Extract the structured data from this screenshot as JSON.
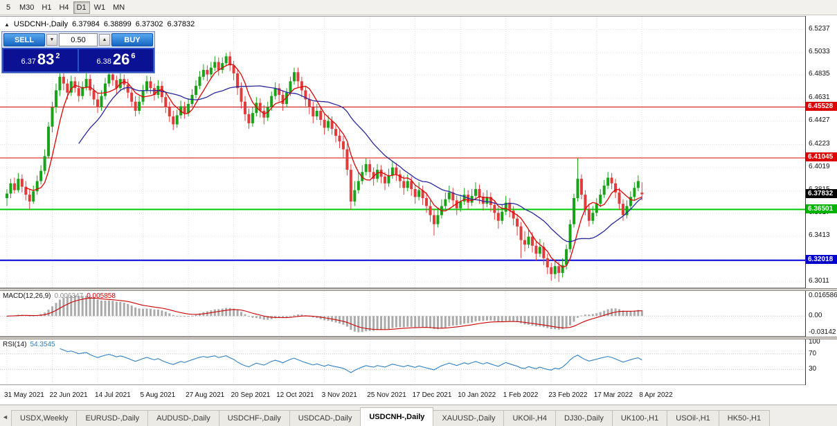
{
  "toolbar": {
    "timeframes": [
      {
        "label": "5",
        "active": false
      },
      {
        "label": "M30",
        "active": false
      },
      {
        "label": "H1",
        "active": false
      },
      {
        "label": "H4",
        "active": false
      },
      {
        "label": "D1",
        "active": true
      },
      {
        "label": "W1",
        "active": false
      },
      {
        "label": "MN",
        "active": false
      }
    ]
  },
  "icons": {
    "collapse": "▲",
    "lot_decrease": "▼",
    "lot_increase": "▲",
    "tab_scroll_left": "◄"
  },
  "chart": {
    "title": "USDCNH-,Daily",
    "ohlc": {
      "open": "6.37984",
      "high": "6.38899",
      "low": "6.37302",
      "close": "6.37832"
    }
  },
  "trade_panel": {
    "sell_label": "SELL",
    "buy_label": "BUY",
    "lot_size": "0.50",
    "sell_price": {
      "prefix": "6.37",
      "big": "83",
      "sup": "2"
    },
    "buy_price": {
      "prefix": "6.38",
      "big": "26",
      "sup": "6"
    }
  },
  "price_axis": {
    "labels": [
      "6.5237",
      "6.5033",
      "6.4835",
      "6.4631",
      "6.4427",
      "6.4223",
      "6.4019",
      "6.3815",
      "6.3617",
      "6.3413",
      "6.3209",
      "6.3011"
    ],
    "tags": [
      {
        "text": "6.45528",
        "color": "#dd0000"
      },
      {
        "text": "6.41045",
        "color": "#dd0000"
      },
      {
        "text": "6.37832",
        "color": "#000000"
      },
      {
        "text": "6.36501",
        "color": "#00b300"
      },
      {
        "text": "6.32018",
        "color": "#0000cc"
      }
    ]
  },
  "indicators": {
    "macd": {
      "name": "MACD(12,26,9)",
      "value_main": "0.006347",
      "value_signal": "0.005858",
      "axis_labels": [
        "0.016586",
        "0.00",
        "-0.03142"
      ],
      "fast": 12,
      "slow": 26,
      "signal": 9,
      "hist_color": "#aaaaaa",
      "signal_color": "#cc0000"
    },
    "rsi": {
      "name": "RSI(14)",
      "value": "54.3545",
      "axis_labels": [
        "100",
        "70",
        "30"
      ],
      "period": 14,
      "line_color": "#2e7fc1",
      "levels": [
        70,
        30
      ]
    }
  },
  "x_axis": {
    "dates": [
      "31 May 2021",
      "22 Jun 2021",
      "14 Jul 2021",
      "5 Aug 2021",
      "27 Aug 2021",
      "20 Sep 2021",
      "12 Oct 2021",
      "3 Nov 2021",
      "25 Nov 2021",
      "17 Dec 2021",
      "10 Jan 2022",
      "1 Feb 2022",
      "23 Feb 2022",
      "17 Mar 2022",
      "8 Apr 2022"
    ]
  },
  "tabs": {
    "items": [
      {
        "label": "USDX,Weekly",
        "active": false
      },
      {
        "label": "EURUSD-,Daily",
        "active": false
      },
      {
        "label": "AUDUSD-,Daily",
        "active": false
      },
      {
        "label": "USDCHF-,Daily",
        "active": false
      },
      {
        "label": "USDCAD-,Daily",
        "active": false
      },
      {
        "label": "USDCNH-,Daily",
        "active": true
      },
      {
        "label": "XAUUSD-,Daily",
        "active": false
      },
      {
        "label": "UKOil-,H4",
        "active": false
      },
      {
        "label": "DJ30-,Daily",
        "active": false
      },
      {
        "label": "UK100-,H1",
        "active": false
      },
      {
        "label": "USOil-,H1",
        "active": false
      },
      {
        "label": "HK50-,H1",
        "active": false
      }
    ]
  },
  "chart_data": {
    "type": "candlestick",
    "symbol": "USDCNH-",
    "timeframe": "Daily",
    "title": "USDCNH-,Daily",
    "ylim": [
      6.295,
      6.535
    ],
    "up_color": "#18a318",
    "down_color": "#e03c3c",
    "ma_fast_period": 6,
    "ma_fast_color": "#dd0000",
    "ma_slow_period": 20,
    "ma_slow_color": "#26269e",
    "last_price": 6.37832,
    "hlines": [
      {
        "price": 6.45528,
        "color": "#dd0000",
        "width": 1
      },
      {
        "price": 6.41045,
        "color": "#dd0000",
        "width": 1
      },
      {
        "price": 6.36501,
        "color": "#00cc00",
        "width": 2
      },
      {
        "price": 6.32018,
        "color": "#0000dd",
        "width": 2
      }
    ],
    "candles": [
      [
        6.375,
        6.383,
        6.368,
        6.379
      ],
      [
        6.379,
        6.392,
        6.375,
        6.388
      ],
      [
        6.388,
        6.393,
        6.379,
        6.382
      ],
      [
        6.382,
        6.397,
        6.38,
        6.392
      ],
      [
        6.392,
        6.396,
        6.38,
        6.385
      ],
      [
        6.385,
        6.39,
        6.373,
        6.378
      ],
      [
        6.378,
        6.383,
        6.365,
        6.372
      ],
      [
        6.372,
        6.386,
        6.37,
        6.381
      ],
      [
        6.381,
        6.395,
        6.378,
        6.39
      ],
      [
        6.39,
        6.404,
        6.387,
        6.399
      ],
      [
        6.399,
        6.418,
        6.396,
        6.412
      ],
      [
        6.412,
        6.442,
        6.41,
        6.438
      ],
      [
        6.438,
        6.46,
        6.433,
        6.455
      ],
      [
        6.455,
        6.476,
        6.45,
        6.47
      ],
      [
        6.47,
        6.487,
        6.465,
        6.482
      ],
      [
        6.482,
        6.486,
        6.47,
        6.476
      ],
      [
        6.476,
        6.48,
        6.462,
        6.468
      ],
      [
        6.468,
        6.483,
        6.465,
        6.478
      ],
      [
        6.478,
        6.482,
        6.468,
        6.472
      ],
      [
        6.472,
        6.478,
        6.46,
        6.465
      ],
      [
        6.465,
        6.478,
        6.462,
        6.473
      ],
      [
        6.473,
        6.485,
        6.47,
        6.48
      ],
      [
        6.48,
        6.484,
        6.465,
        6.47
      ],
      [
        6.47,
        6.475,
        6.457,
        6.462
      ],
      [
        6.462,
        6.468,
        6.45,
        6.455
      ],
      [
        6.455,
        6.47,
        6.452,
        6.465
      ],
      [
        6.465,
        6.481,
        6.462,
        6.476
      ],
      [
        6.476,
        6.489,
        6.473,
        6.484
      ],
      [
        6.484,
        6.488,
        6.474,
        6.479
      ],
      [
        6.479,
        6.483,
        6.467,
        6.472
      ],
      [
        6.472,
        6.485,
        6.469,
        6.48
      ],
      [
        6.48,
        6.484,
        6.47,
        6.475
      ],
      [
        6.475,
        6.48,
        6.463,
        6.468
      ],
      [
        6.468,
        6.473,
        6.455,
        6.46
      ],
      [
        6.46,
        6.465,
        6.447,
        6.452
      ],
      [
        6.452,
        6.465,
        6.449,
        6.46
      ],
      [
        6.46,
        6.475,
        6.457,
        6.47
      ],
      [
        6.47,
        6.483,
        6.467,
        6.478
      ],
      [
        6.478,
        6.482,
        6.467,
        6.472
      ],
      [
        6.472,
        6.476,
        6.461,
        6.466
      ],
      [
        6.466,
        6.479,
        6.463,
        6.474
      ],
      [
        6.474,
        6.478,
        6.459,
        6.464
      ],
      [
        6.464,
        6.469,
        6.45,
        6.455
      ],
      [
        6.455,
        6.46,
        6.442,
        6.447
      ],
      [
        6.447,
        6.452,
        6.435,
        6.44
      ],
      [
        6.44,
        6.453,
        6.437,
        6.448
      ],
      [
        6.448,
        6.461,
        6.445,
        6.456
      ],
      [
        6.456,
        6.46,
        6.445,
        6.45
      ],
      [
        6.45,
        6.463,
        6.447,
        6.458
      ],
      [
        6.458,
        6.471,
        6.455,
        6.466
      ],
      [
        6.466,
        6.479,
        6.463,
        6.474
      ],
      [
        6.474,
        6.487,
        6.471,
        6.482
      ],
      [
        6.482,
        6.493,
        6.479,
        6.488
      ],
      [
        6.488,
        6.492,
        6.478,
        6.484
      ],
      [
        6.484,
        6.495,
        6.481,
        6.49
      ],
      [
        6.49,
        6.5,
        6.487,
        6.495
      ],
      [
        6.495,
        6.499,
        6.483,
        6.488
      ],
      [
        6.488,
        6.499,
        6.485,
        6.494
      ],
      [
        6.494,
        6.503,
        6.491,
        6.5
      ],
      [
        6.5,
        6.504,
        6.487,
        6.492
      ],
      [
        6.492,
        6.496,
        6.479,
        6.485
      ],
      [
        6.485,
        6.489,
        6.466,
        6.472
      ],
      [
        6.472,
        6.477,
        6.454,
        6.46
      ],
      [
        6.46,
        6.465,
        6.443,
        6.449
      ],
      [
        6.449,
        6.454,
        6.436,
        6.441
      ],
      [
        6.441,
        6.455,
        6.438,
        6.45
      ],
      [
        6.45,
        6.464,
        6.447,
        6.459
      ],
      [
        6.459,
        6.463,
        6.446,
        6.452
      ],
      [
        6.452,
        6.457,
        6.44,
        6.446
      ],
      [
        6.446,
        6.46,
        6.443,
        6.455
      ],
      [
        6.455,
        6.469,
        6.452,
        6.465
      ],
      [
        6.465,
        6.477,
        6.462,
        6.472
      ],
      [
        6.472,
        6.476,
        6.46,
        6.466
      ],
      [
        6.466,
        6.47,
        6.452,
        6.458
      ],
      [
        6.458,
        6.472,
        6.455,
        6.468
      ],
      [
        6.468,
        6.482,
        6.465,
        6.478
      ],
      [
        6.478,
        6.49,
        6.475,
        6.486
      ],
      [
        6.486,
        6.49,
        6.472,
        6.478
      ],
      [
        6.478,
        6.482,
        6.464,
        6.47
      ],
      [
        6.47,
        6.474,
        6.456,
        6.462
      ],
      [
        6.462,
        6.467,
        6.449,
        6.455
      ],
      [
        6.455,
        6.46,
        6.441,
        6.447
      ],
      [
        6.447,
        6.458,
        6.444,
        6.452
      ],
      [
        6.452,
        6.456,
        6.439,
        6.444
      ],
      [
        6.444,
        6.449,
        6.431,
        6.437
      ],
      [
        6.437,
        6.448,
        6.434,
        6.443
      ],
      [
        6.443,
        6.447,
        6.431,
        6.436
      ],
      [
        6.436,
        6.441,
        6.424,
        6.43
      ],
      [
        6.43,
        6.435,
        6.419,
        6.425
      ],
      [
        6.425,
        6.43,
        6.41,
        6.418
      ],
      [
        6.418,
        6.423,
        6.395,
        6.4
      ],
      [
        6.4,
        6.405,
        6.365,
        6.372
      ],
      [
        6.372,
        6.39,
        6.368,
        6.382
      ],
      [
        6.382,
        6.398,
        6.379,
        6.39
      ],
      [
        6.39,
        6.404,
        6.387,
        6.398
      ],
      [
        6.398,
        6.41,
        6.395,
        6.405
      ],
      [
        6.405,
        6.409,
        6.393,
        6.398
      ],
      [
        6.398,
        6.402,
        6.386,
        6.392
      ],
      [
        6.392,
        6.405,
        6.389,
        6.4
      ],
      [
        6.4,
        6.404,
        6.388,
        6.394
      ],
      [
        6.394,
        6.398,
        6.382,
        6.388
      ],
      [
        6.388,
        6.401,
        6.385,
        6.395
      ],
      [
        6.395,
        6.408,
        6.392,
        6.402
      ],
      [
        6.402,
        6.406,
        6.39,
        6.396
      ],
      [
        6.396,
        6.4,
        6.384,
        6.39
      ],
      [
        6.39,
        6.395,
        6.378,
        6.384
      ],
      [
        6.384,
        6.396,
        6.381,
        6.39
      ],
      [
        6.39,
        6.394,
        6.377,
        6.383
      ],
      [
        6.383,
        6.387,
        6.37,
        6.376
      ],
      [
        6.376,
        6.389,
        6.373,
        6.382
      ],
      [
        6.382,
        6.386,
        6.369,
        6.375
      ],
      [
        6.375,
        6.38,
        6.362,
        6.368
      ],
      [
        6.368,
        6.373,
        6.354,
        6.36
      ],
      [
        6.36,
        6.365,
        6.342,
        6.352
      ],
      [
        6.352,
        6.366,
        6.349,
        6.36
      ],
      [
        6.36,
        6.374,
        6.357,
        6.368
      ],
      [
        6.368,
        6.38,
        6.365,
        6.374
      ],
      [
        6.374,
        6.386,
        6.371,
        6.38
      ],
      [
        6.38,
        6.384,
        6.367,
        6.373
      ],
      [
        6.373,
        6.377,
        6.36,
        6.366
      ],
      [
        6.366,
        6.378,
        6.363,
        6.372
      ],
      [
        6.372,
        6.384,
        6.369,
        6.378
      ],
      [
        6.378,
        6.382,
        6.365,
        6.371
      ],
      [
        6.371,
        6.383,
        6.368,
        6.377
      ],
      [
        6.377,
        6.389,
        6.374,
        6.383
      ],
      [
        6.383,
        6.387,
        6.37,
        6.376
      ],
      [
        6.376,
        6.38,
        6.364,
        6.37
      ],
      [
        6.37,
        6.382,
        6.367,
        6.376
      ],
      [
        6.376,
        6.38,
        6.363,
        6.369
      ],
      [
        6.369,
        6.373,
        6.356,
        6.362
      ],
      [
        6.362,
        6.367,
        6.348,
        6.355
      ],
      [
        6.355,
        6.369,
        6.352,
        6.363
      ],
      [
        6.363,
        6.377,
        6.36,
        6.371
      ],
      [
        6.371,
        6.375,
        6.358,
        6.364
      ],
      [
        6.364,
        6.368,
        6.351,
        6.357
      ],
      [
        6.357,
        6.361,
        6.342,
        6.35
      ],
      [
        6.35,
        6.354,
        6.322,
        6.338
      ],
      [
        6.338,
        6.346,
        6.328,
        6.334
      ],
      [
        6.334,
        6.347,
        6.331,
        6.341
      ],
      [
        6.341,
        6.345,
        6.327,
        6.333
      ],
      [
        6.333,
        6.337,
        6.32,
        6.326
      ],
      [
        6.326,
        6.339,
        6.323,
        6.332
      ],
      [
        6.332,
        6.336,
        6.316,
        6.322
      ],
      [
        6.322,
        6.326,
        6.308,
        6.314
      ],
      [
        6.314,
        6.318,
        6.302,
        6.308
      ],
      [
        6.308,
        6.321,
        6.304,
        6.315
      ],
      [
        6.315,
        6.319,
        6.301,
        6.309
      ],
      [
        6.309,
        6.322,
        6.305,
        6.316
      ],
      [
        6.316,
        6.334,
        6.312,
        6.33
      ],
      [
        6.33,
        6.356,
        6.327,
        6.352
      ],
      [
        6.352,
        6.379,
        6.349,
        6.375
      ],
      [
        6.375,
        6.41,
        6.372,
        6.392
      ],
      [
        6.392,
        6.396,
        6.374,
        6.378
      ],
      [
        6.378,
        6.382,
        6.36,
        6.365
      ],
      [
        6.365,
        6.37,
        6.35,
        6.355
      ],
      [
        6.355,
        6.368,
        6.352,
        6.362
      ],
      [
        6.362,
        6.375,
        6.359,
        6.37
      ],
      [
        6.37,
        6.383,
        6.367,
        6.378
      ],
      [
        6.378,
        6.391,
        6.375,
        6.386
      ],
      [
        6.386,
        6.398,
        6.383,
        6.393
      ],
      [
        6.393,
        6.397,
        6.383,
        6.388
      ],
      [
        6.388,
        6.392,
        6.375,
        6.38
      ],
      [
        6.38,
        6.384,
        6.365,
        6.37
      ],
      [
        6.37,
        6.374,
        6.355,
        6.36
      ],
      [
        6.36,
        6.373,
        6.357,
        6.368
      ],
      [
        6.368,
        6.381,
        6.365,
        6.376
      ],
      [
        6.376,
        6.389,
        6.373,
        6.384
      ],
      [
        6.384,
        6.395,
        6.381,
        6.39
      ],
      [
        6.37984,
        6.38899,
        6.37302,
        6.37832
      ]
    ]
  }
}
